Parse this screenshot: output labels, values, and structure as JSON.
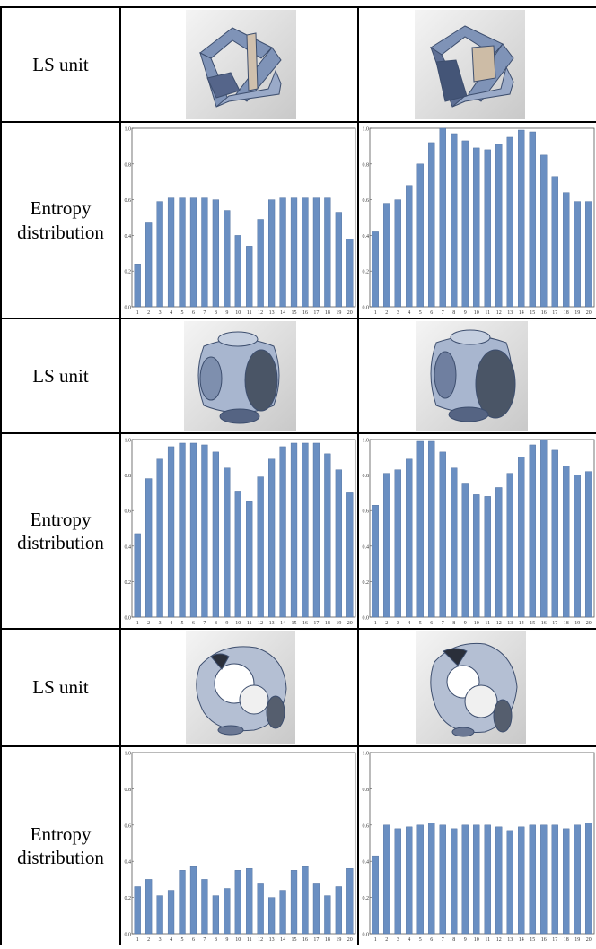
{
  "rows": [
    {
      "kind": "unit",
      "label": "LS unit",
      "images": [
        "strut-lattice-unit-view-a",
        "strut-lattice-unit-view-b"
      ]
    },
    {
      "kind": "chart",
      "label_line1": "Entropy",
      "label_line2": "distribution",
      "chart_ids": [
        0,
        1
      ]
    },
    {
      "kind": "unit",
      "label": "LS unit",
      "images": [
        "rounded-cubic-unit-view-a",
        "rounded-cubic-unit-view-b"
      ]
    },
    {
      "kind": "chart",
      "label_line1": "Entropy",
      "label_line2": "distribution",
      "chart_ids": [
        2,
        3
      ]
    },
    {
      "kind": "unit",
      "label": "LS unit",
      "images": [
        "curved-shell-unit-view-a",
        "curved-shell-unit-view-b"
      ]
    },
    {
      "kind": "chart",
      "label_line1": "Entropy",
      "label_line2": "distribution",
      "chart_ids": [
        4,
        5
      ]
    }
  ],
  "chart_data": [
    {
      "type": "bar",
      "categories": [
        "1",
        "2",
        "3",
        "4",
        "5",
        "6",
        "7",
        "8",
        "9",
        "10",
        "11",
        "12",
        "13",
        "14",
        "15",
        "16",
        "17",
        "18",
        "19",
        "20"
      ],
      "values": [
        0.24,
        0.47,
        0.59,
        0.61,
        0.61,
        0.61,
        0.61,
        0.6,
        0.54,
        0.4,
        0.34,
        0.49,
        0.6,
        0.61,
        0.61,
        0.61,
        0.61,
        0.61,
        0.53,
        0.38
      ],
      "yticks": [
        "0.0",
        "0.2",
        "0.4",
        "0.6",
        "0.8",
        "1.0"
      ],
      "ylim": [
        0,
        1.0
      ],
      "color": "#6a8fc2"
    },
    {
      "type": "bar",
      "categories": [
        "1",
        "2",
        "3",
        "4",
        "5",
        "6",
        "7",
        "8",
        "9",
        "10",
        "11",
        "12",
        "13",
        "14",
        "15",
        "16",
        "17",
        "18",
        "19",
        "20"
      ],
      "values": [
        0.42,
        0.58,
        0.6,
        0.68,
        0.8,
        0.92,
        1.0,
        0.97,
        0.93,
        0.89,
        0.88,
        0.91,
        0.95,
        0.99,
        0.98,
        0.85,
        0.73,
        0.64,
        0.59,
        0.59
      ],
      "yticks": [
        "0.0",
        "0.2",
        "0.4",
        "0.6",
        "0.8",
        "1.0"
      ],
      "ylim": [
        0,
        1.0
      ],
      "color": "#6a8fc2"
    },
    {
      "type": "bar",
      "categories": [
        "1",
        "2",
        "3",
        "4",
        "5",
        "6",
        "7",
        "8",
        "9",
        "10",
        "11",
        "12",
        "13",
        "14",
        "15",
        "16",
        "17",
        "18",
        "19",
        "20"
      ],
      "values": [
        0.47,
        0.78,
        0.89,
        0.96,
        0.98,
        0.98,
        0.97,
        0.93,
        0.84,
        0.71,
        0.65,
        0.79,
        0.89,
        0.96,
        0.98,
        0.98,
        0.98,
        0.92,
        0.83,
        0.7
      ],
      "yticks": [
        "0.0",
        "0.2",
        "0.4",
        "0.6",
        "0.8",
        "1.0"
      ],
      "ylim": [
        0,
        1.0
      ],
      "color": "#6a8fc2"
    },
    {
      "type": "bar",
      "categories": [
        "1",
        "2",
        "3",
        "4",
        "5",
        "6",
        "7",
        "8",
        "9",
        "10",
        "11",
        "12",
        "13",
        "14",
        "15",
        "16",
        "17",
        "18",
        "19",
        "20"
      ],
      "values": [
        0.63,
        0.81,
        0.83,
        0.89,
        0.99,
        0.99,
        0.93,
        0.84,
        0.75,
        0.69,
        0.68,
        0.73,
        0.81,
        0.9,
        0.97,
        1.0,
        0.94,
        0.85,
        0.8,
        0.82
      ],
      "yticks": [
        "0.0",
        "0.2",
        "0.4",
        "0.6",
        "0.8",
        "1.0"
      ],
      "ylim": [
        0,
        1.0
      ],
      "color": "#6a8fc2"
    },
    {
      "type": "bar",
      "categories": [
        "1",
        "2",
        "3",
        "4",
        "5",
        "6",
        "7",
        "8",
        "9",
        "10",
        "11",
        "12",
        "13",
        "14",
        "15",
        "16",
        "17",
        "18",
        "19",
        "20"
      ],
      "values": [
        0.26,
        0.3,
        0.21,
        0.24,
        0.35,
        0.37,
        0.3,
        0.21,
        0.25,
        0.35,
        0.36,
        0.28,
        0.2,
        0.24,
        0.35,
        0.37,
        0.28,
        0.21,
        0.26,
        0.36
      ],
      "yticks": [
        "0.0",
        "0.2",
        "0.4",
        "0.6",
        "0.8",
        "1.0"
      ],
      "ylim": [
        0,
        1.0
      ],
      "color": "#6a8fc2"
    },
    {
      "type": "bar",
      "categories": [
        "1",
        "2",
        "3",
        "4",
        "5",
        "6",
        "7",
        "8",
        "9",
        "10",
        "11",
        "12",
        "13",
        "14",
        "15",
        "16",
        "17",
        "18",
        "19",
        "20"
      ],
      "values": [
        0.43,
        0.6,
        0.58,
        0.59,
        0.6,
        0.61,
        0.6,
        0.58,
        0.6,
        0.6,
        0.6,
        0.59,
        0.57,
        0.59,
        0.6,
        0.6,
        0.6,
        0.58,
        0.6,
        0.61
      ],
      "yticks": [
        "0.0",
        "0.2",
        "0.4",
        "0.6",
        "0.8",
        "1.0"
      ],
      "ylim": [
        0,
        1.0
      ],
      "color": "#6a8fc2"
    }
  ]
}
